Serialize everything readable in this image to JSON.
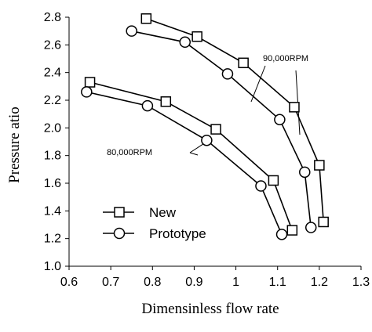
{
  "chart_data": {
    "type": "line",
    "title": "",
    "xlabel": "Dimensinless flow rate",
    "ylabel": "Pressure atio",
    "xlim": [
      0.6,
      1.3
    ],
    "ylim": [
      1.0,
      2.8
    ],
    "xticks": [
      "0.6",
      "0.7",
      "0.8",
      "0.9",
      "1",
      "1.1",
      "1.2",
      "1.3"
    ],
    "yticks": [
      "1.0",
      "1.2",
      "1.4",
      "1.6",
      "1.8",
      "2.0",
      "2.2",
      "2.4",
      "2.6",
      "2.8"
    ],
    "grid": false,
    "legend_position": "bottom-left",
    "legend": [
      {
        "label": "New",
        "marker": "square"
      },
      {
        "label": "Prototype",
        "marker": "circle"
      }
    ],
    "series": [
      {
        "legend": "New",
        "speed": "90,000RPM",
        "marker": "square",
        "x": [
          0.785,
          0.907,
          1.018,
          1.14,
          1.2,
          1.21
        ],
        "y": [
          2.79,
          2.66,
          2.47,
          2.15,
          1.73,
          1.32
        ]
      },
      {
        "legend": "Prototype",
        "speed": "90,000RPM",
        "marker": "circle",
        "x": [
          0.75,
          0.878,
          0.98,
          1.105,
          1.165,
          1.18
        ],
        "y": [
          2.7,
          2.62,
          2.39,
          2.06,
          1.68,
          1.28
        ]
      },
      {
        "legend": "New",
        "speed": "80,000RPM",
        "marker": "square",
        "x": [
          0.65,
          0.832,
          0.952,
          1.09,
          1.135
        ],
        "y": [
          2.33,
          2.19,
          1.99,
          1.62,
          1.26
        ]
      },
      {
        "legend": "Prototype",
        "speed": "80,000RPM",
        "marker": "circle",
        "x": [
          0.642,
          0.788,
          0.93,
          1.06,
          1.11
        ],
        "y": [
          2.26,
          2.16,
          1.91,
          1.58,
          1.23
        ]
      }
    ],
    "annotations": [
      {
        "text": "90,000RPM"
      },
      {
        "text": "80,000RPM"
      }
    ]
  }
}
